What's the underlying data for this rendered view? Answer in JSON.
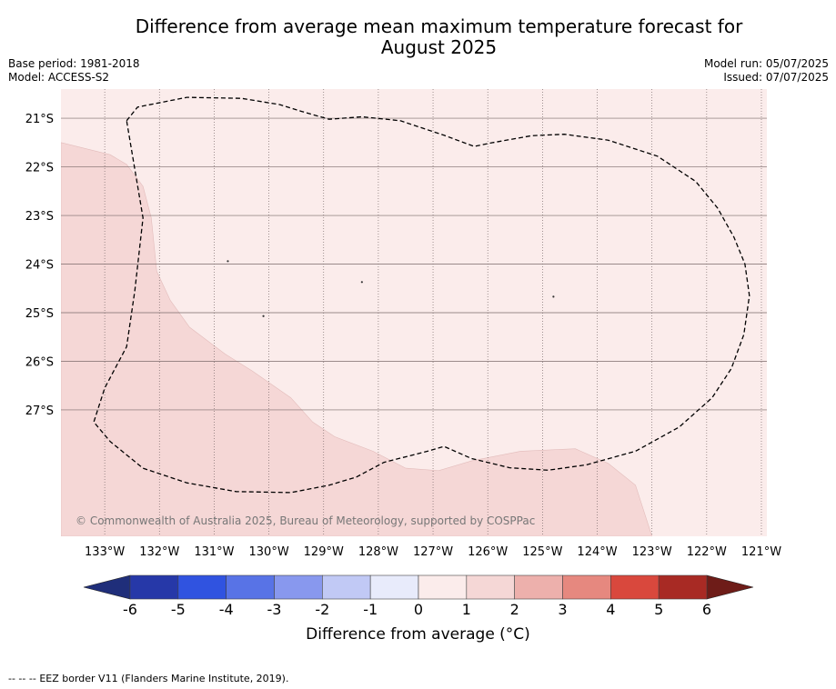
{
  "header": {
    "title_line1": "Difference from average mean maximum temperature forecast for",
    "title_line2": "August 2025",
    "base_period": "Base period: 1981-2018",
    "model": "Model: ACCESS-S2",
    "model_run": "Model run: 05/07/2025",
    "issued": "Issued: 07/07/2025"
  },
  "map": {
    "lon_range": [
      -133.8,
      -120.9
    ],
    "lat_range": [
      -29.6,
      -20.4
    ],
    "lon_ticks": [
      -133,
      -132,
      -131,
      -130,
      -129,
      -128,
      -127,
      -126,
      -125,
      -124,
      -123,
      -122,
      -121
    ],
    "lon_tick_labels": [
      "133°W",
      "132°W",
      "131°W",
      "130°W",
      "129°W",
      "128°W",
      "127°W",
      "126°W",
      "125°W",
      "124°W",
      "123°W",
      "122°W",
      "121°W"
    ],
    "lat_ticks": [
      -21,
      -22,
      -23,
      -24,
      -25,
      -26,
      -27
    ],
    "lat_tick_labels": [
      "21°S",
      "22°S",
      "23°S",
      "24°S",
      "25°S",
      "26°S",
      "27°S"
    ],
    "background_fill_class": "0 to 1",
    "background_color": "#fbeceb",
    "region_fill_class": "1 to 2",
    "region_color": "#f5d7d6",
    "region_boundary": [
      [
        -133.8,
        -21.5
      ],
      [
        -132.9,
        -21.75
      ],
      [
        -132.6,
        -21.95
      ],
      [
        -132.3,
        -22.4
      ],
      [
        -132.15,
        -23.05
      ],
      [
        -132.05,
        -24.15
      ],
      [
        -131.8,
        -24.75
      ],
      [
        -131.45,
        -25.3
      ],
      [
        -130.8,
        -25.85
      ],
      [
        -130.3,
        -26.2
      ],
      [
        -129.6,
        -26.75
      ],
      [
        -129.2,
        -27.25
      ],
      [
        -128.8,
        -27.55
      ],
      [
        -128.1,
        -27.85
      ],
      [
        -127.5,
        -28.2
      ],
      [
        -126.9,
        -28.25
      ],
      [
        -126.3,
        -28.05
      ],
      [
        -125.4,
        -27.85
      ],
      [
        -124.4,
        -27.8
      ],
      [
        -123.8,
        -28.1
      ],
      [
        -123.3,
        -28.55
      ],
      [
        -123.0,
        -29.6
      ],
      [
        -133.8,
        -29.6
      ]
    ],
    "eez_border": [
      [
        -132.6,
        -21.05
      ],
      [
        -132.4,
        -20.77
      ],
      [
        -131.5,
        -20.57
      ],
      [
        -130.5,
        -20.59
      ],
      [
        -129.8,
        -20.72
      ],
      [
        -129.4,
        -20.86
      ],
      [
        -128.9,
        -21.02
      ],
      [
        -128.3,
        -20.97
      ],
      [
        -127.6,
        -21.05
      ],
      [
        -127.2,
        -21.2
      ],
      [
        -126.8,
        -21.35
      ],
      [
        -126.25,
        -21.58
      ],
      [
        -125.9,
        -21.5
      ],
      [
        -125.2,
        -21.36
      ],
      [
        -124.6,
        -21.33
      ],
      [
        -123.8,
        -21.45
      ],
      [
        -122.9,
        -21.78
      ],
      [
        -122.2,
        -22.3
      ],
      [
        -121.8,
        -22.85
      ],
      [
        -121.5,
        -23.45
      ],
      [
        -121.3,
        -24.0
      ],
      [
        -121.22,
        -24.65
      ],
      [
        -121.32,
        -25.45
      ],
      [
        -121.55,
        -26.15
      ],
      [
        -121.9,
        -26.75
      ],
      [
        -122.5,
        -27.35
      ],
      [
        -123.3,
        -27.85
      ],
      [
        -124.2,
        -28.13
      ],
      [
        -124.9,
        -28.24
      ],
      [
        -125.6,
        -28.19
      ],
      [
        -126.3,
        -28.0
      ],
      [
        -126.8,
        -27.75
      ],
      [
        -127.1,
        -27.85
      ],
      [
        -127.9,
        -28.08
      ],
      [
        -128.4,
        -28.38
      ],
      [
        -128.9,
        -28.55
      ],
      [
        -129.6,
        -28.7
      ],
      [
        -130.6,
        -28.68
      ],
      [
        -131.5,
        -28.5
      ],
      [
        -132.3,
        -28.2
      ],
      [
        -132.9,
        -27.65
      ],
      [
        -133.2,
        -27.25
      ],
      [
        -133.0,
        -26.55
      ],
      [
        -132.6,
        -25.7
      ],
      [
        -132.45,
        -24.55
      ],
      [
        -132.3,
        -23.05
      ],
      [
        -132.6,
        -21.05
      ]
    ],
    "islands": [
      [
        -130.75,
        -23.94
      ],
      [
        -128.3,
        -24.37
      ],
      [
        -130.1,
        -25.07
      ],
      [
        -124.8,
        -24.67
      ]
    ],
    "attribution": "© Commonwealth of Australia 2025, Bureau of Meteorology, supported by COSPPac"
  },
  "colorbar": {
    "ticks": [
      "-6",
      "-5",
      "-4",
      "-3",
      "-2",
      "-1",
      "0",
      "1",
      "2",
      "3",
      "4",
      "5",
      "6"
    ],
    "under_color": "#1f2e7a",
    "over_color": "#6e1c18",
    "bin_colors": [
      "#2638a8",
      "#3053e0",
      "#5873e6",
      "#8898ee",
      "#c1c9f5",
      "#e8ebfb",
      "#fbeceb",
      "#f5d7d6",
      "#edb0ac",
      "#e6887f",
      "#d9483d",
      "#a82a24"
    ],
    "label": "Difference from average (°C)"
  },
  "footer": {
    "legend_symbol": "-- -- -- ",
    "legend_text": "EEZ border V11 (Flanders Marine Institute, 2019)."
  }
}
